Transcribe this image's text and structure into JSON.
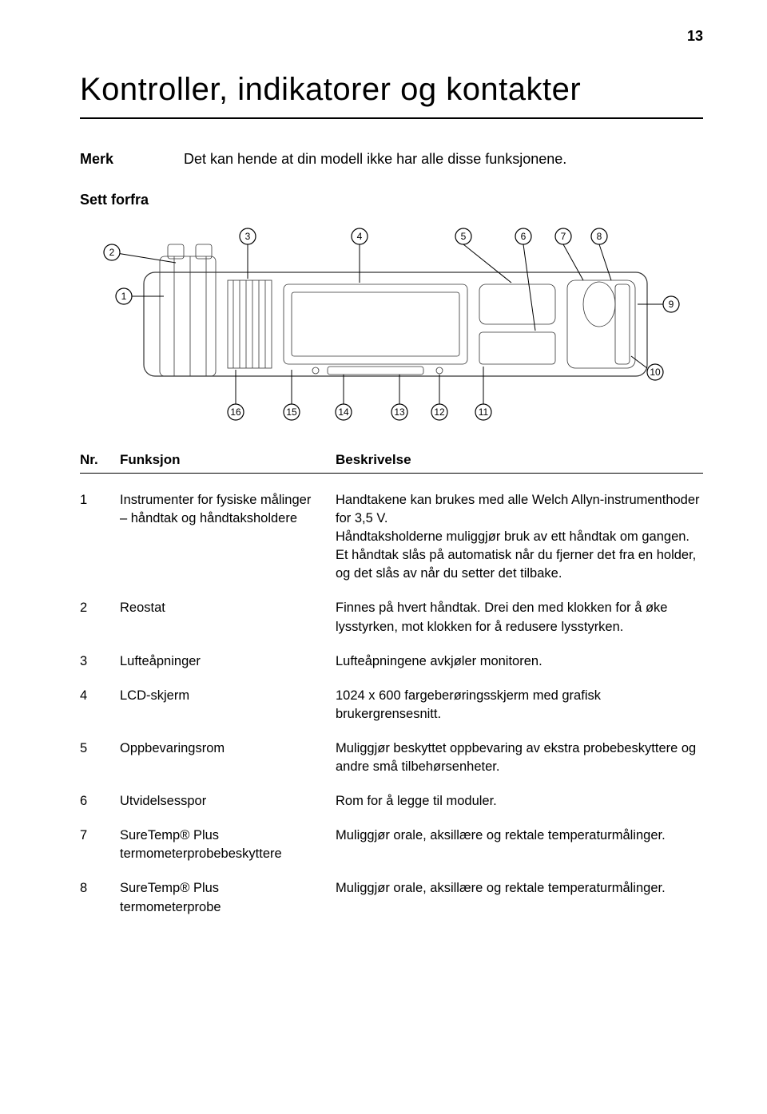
{
  "page_number": "13",
  "title": "Kontroller, indikatorer og kontakter",
  "merk_label": "Merk",
  "merk_text": "Det kan hende at din modell ikke har alle disse funksjonene.",
  "sett_heading": "Sett forfra",
  "table": {
    "head_nr": "Nr.",
    "head_fn": "Funksjon",
    "head_desc": "Beskrivelse",
    "rows": [
      {
        "nr": "1",
        "fn": "Instrumenter for fysiske målinger – håndtak og håndtaksholdere",
        "desc": "Handtakene kan brukes med alle Welch Allyn-instrumenthoder for 3,5 V.\nHåndtaksholderne muliggjør bruk av ett håndtak om gangen. Et håndtak slås på automatisk når du fjerner det fra en holder, og det slås av når du setter det tilbake."
      },
      {
        "nr": "2",
        "fn": "Reostat",
        "desc": "Finnes på hvert håndtak. Drei den med klokken for å øke lysstyrken, mot klokken for å redusere lysstyrken."
      },
      {
        "nr": "3",
        "fn": "Lufteåpninger",
        "desc": "Lufteåpningene avkjøler monitoren."
      },
      {
        "nr": "4",
        "fn": "LCD-skjerm",
        "desc": "1024 x 600 fargeberøringsskjerm med grafisk brukergrensesnitt."
      },
      {
        "nr": "5",
        "fn": "Oppbevaringsrom",
        "desc": "Muliggjør beskyttet oppbevaring av ekstra probebeskyttere og andre små tilbehørsenheter."
      },
      {
        "nr": "6",
        "fn": "Utvidelsesspor",
        "desc": "Rom for å legge til moduler."
      },
      {
        "nr": "7",
        "fn": "SureTemp® Plus termometerprobebeskyttere",
        "desc": "Muliggjør orale, aksillære og rektale temperaturmålinger."
      },
      {
        "nr": "8",
        "fn": "SureTemp® Plus termometerprobe",
        "desc": "Muliggjør orale, aksillære og rektale temperaturmålinger."
      }
    ]
  },
  "callouts_top": [
    "2",
    "3",
    "4",
    "5",
    "6",
    "7",
    "8"
  ],
  "callouts_right": "9",
  "callouts_bottom_right": "10",
  "callouts_left": "1",
  "callouts_bottom": [
    "16",
    "15",
    "14",
    "13",
    "12",
    "11"
  ]
}
